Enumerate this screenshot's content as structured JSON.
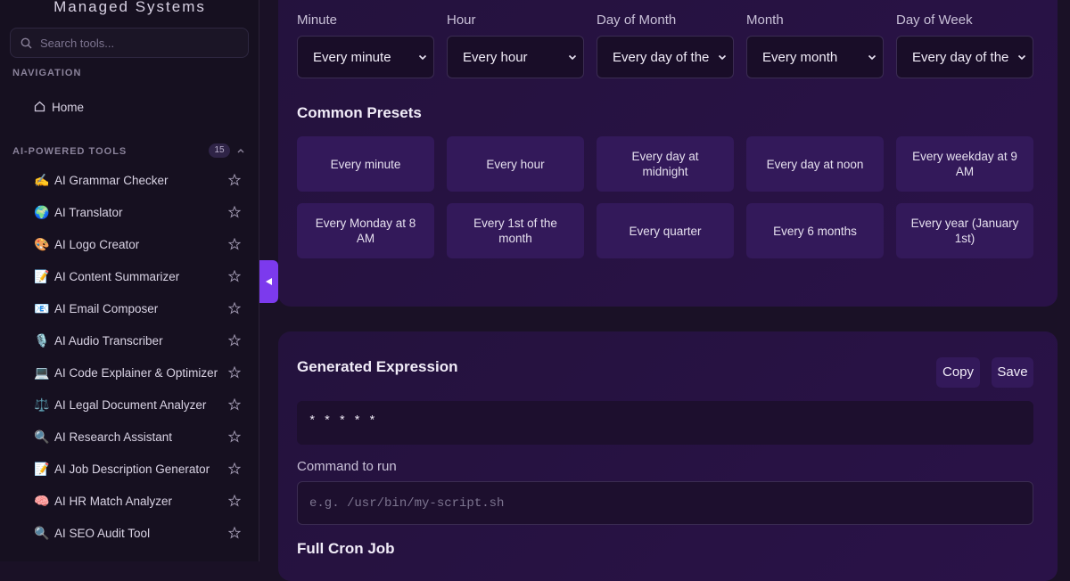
{
  "sidebar": {
    "brand": "Managed Systems",
    "search_placeholder": "Search tools...",
    "navigation_heading": "NAVIGATION",
    "home": "Home",
    "tools_heading": "AI-POWERED TOOLS",
    "tools_count": "15",
    "tools": [
      {
        "icon": "✍️",
        "label": "AI Grammar Checker"
      },
      {
        "icon": "🌍",
        "label": "AI Translator"
      },
      {
        "icon": "🎨",
        "label": "AI Logo Creator"
      },
      {
        "icon": "📝",
        "label": "AI Content Summarizer"
      },
      {
        "icon": "📧",
        "label": "AI Email Composer"
      },
      {
        "icon": "🎙️",
        "label": "AI Audio Transcriber"
      },
      {
        "icon": "💻",
        "label": "AI Code Explainer & Optimizer"
      },
      {
        "icon": "⚖️",
        "label": "AI Legal Document Analyzer"
      },
      {
        "icon": "🔍",
        "label": "AI Research Assistant"
      },
      {
        "icon": "📝",
        "label": "AI Job Description Generator"
      },
      {
        "icon": "🧠",
        "label": "AI HR Match Analyzer"
      },
      {
        "icon": "🔍",
        "label": "AI SEO Audit Tool"
      }
    ]
  },
  "fields": [
    {
      "label": "Minute",
      "value": "Every minute"
    },
    {
      "label": "Hour",
      "value": "Every hour"
    },
    {
      "label": "Day of Month",
      "value": "Every day of the"
    },
    {
      "label": "Month",
      "value": "Every month"
    },
    {
      "label": "Day of Week",
      "value": "Every day of the"
    }
  ],
  "presets": {
    "title": "Common Presets",
    "items": [
      "Every minute",
      "Every hour",
      "Every day at midnight",
      "Every day at noon",
      "Every weekday at 9 AM",
      "Every Monday at 8 AM",
      "Every 1st of the month",
      "Every quarter",
      "Every 6 months",
      "Every year (January 1st)"
    ]
  },
  "expression": {
    "title": "Generated Expression",
    "copy": "Copy",
    "save": "Save",
    "value": "* * * * *",
    "command_label": "Command to run",
    "command_placeholder": "e.g. /usr/bin/my-script.sh",
    "full_cron_title": "Full Cron Job"
  }
}
